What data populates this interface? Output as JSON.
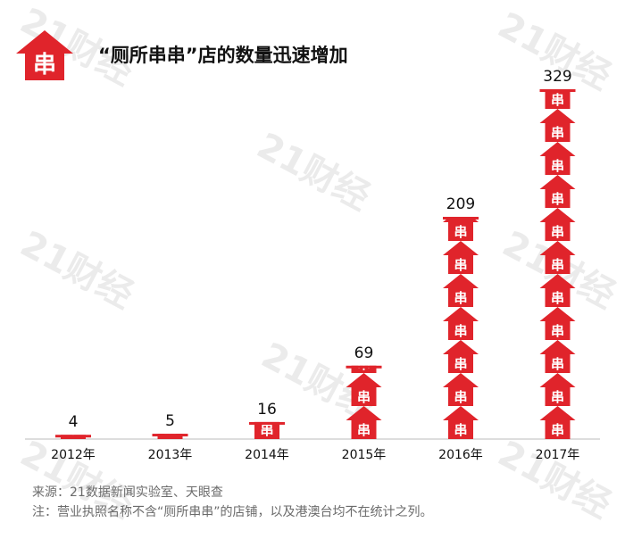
{
  "title": "“厕所串串”店的数量迅速增加",
  "watermark": "21财经",
  "chart_data": {
    "type": "bar",
    "categories": [
      "2012年",
      "2013年",
      "2014年",
      "2015年",
      "2016年",
      "2017年"
    ],
    "values": [
      4,
      5,
      16,
      69,
      209,
      329
    ],
    "ylim": [
      0,
      329
    ],
    "grid": false,
    "bar_color": "#e0242b",
    "icon_glyph": "串"
  },
  "footer": {
    "source": "来源：21数据新闻实验室、天眼查",
    "note": "注：营业执照名称不含“厕所串串”的店铺，以及港澳台均不在统计之列。"
  }
}
